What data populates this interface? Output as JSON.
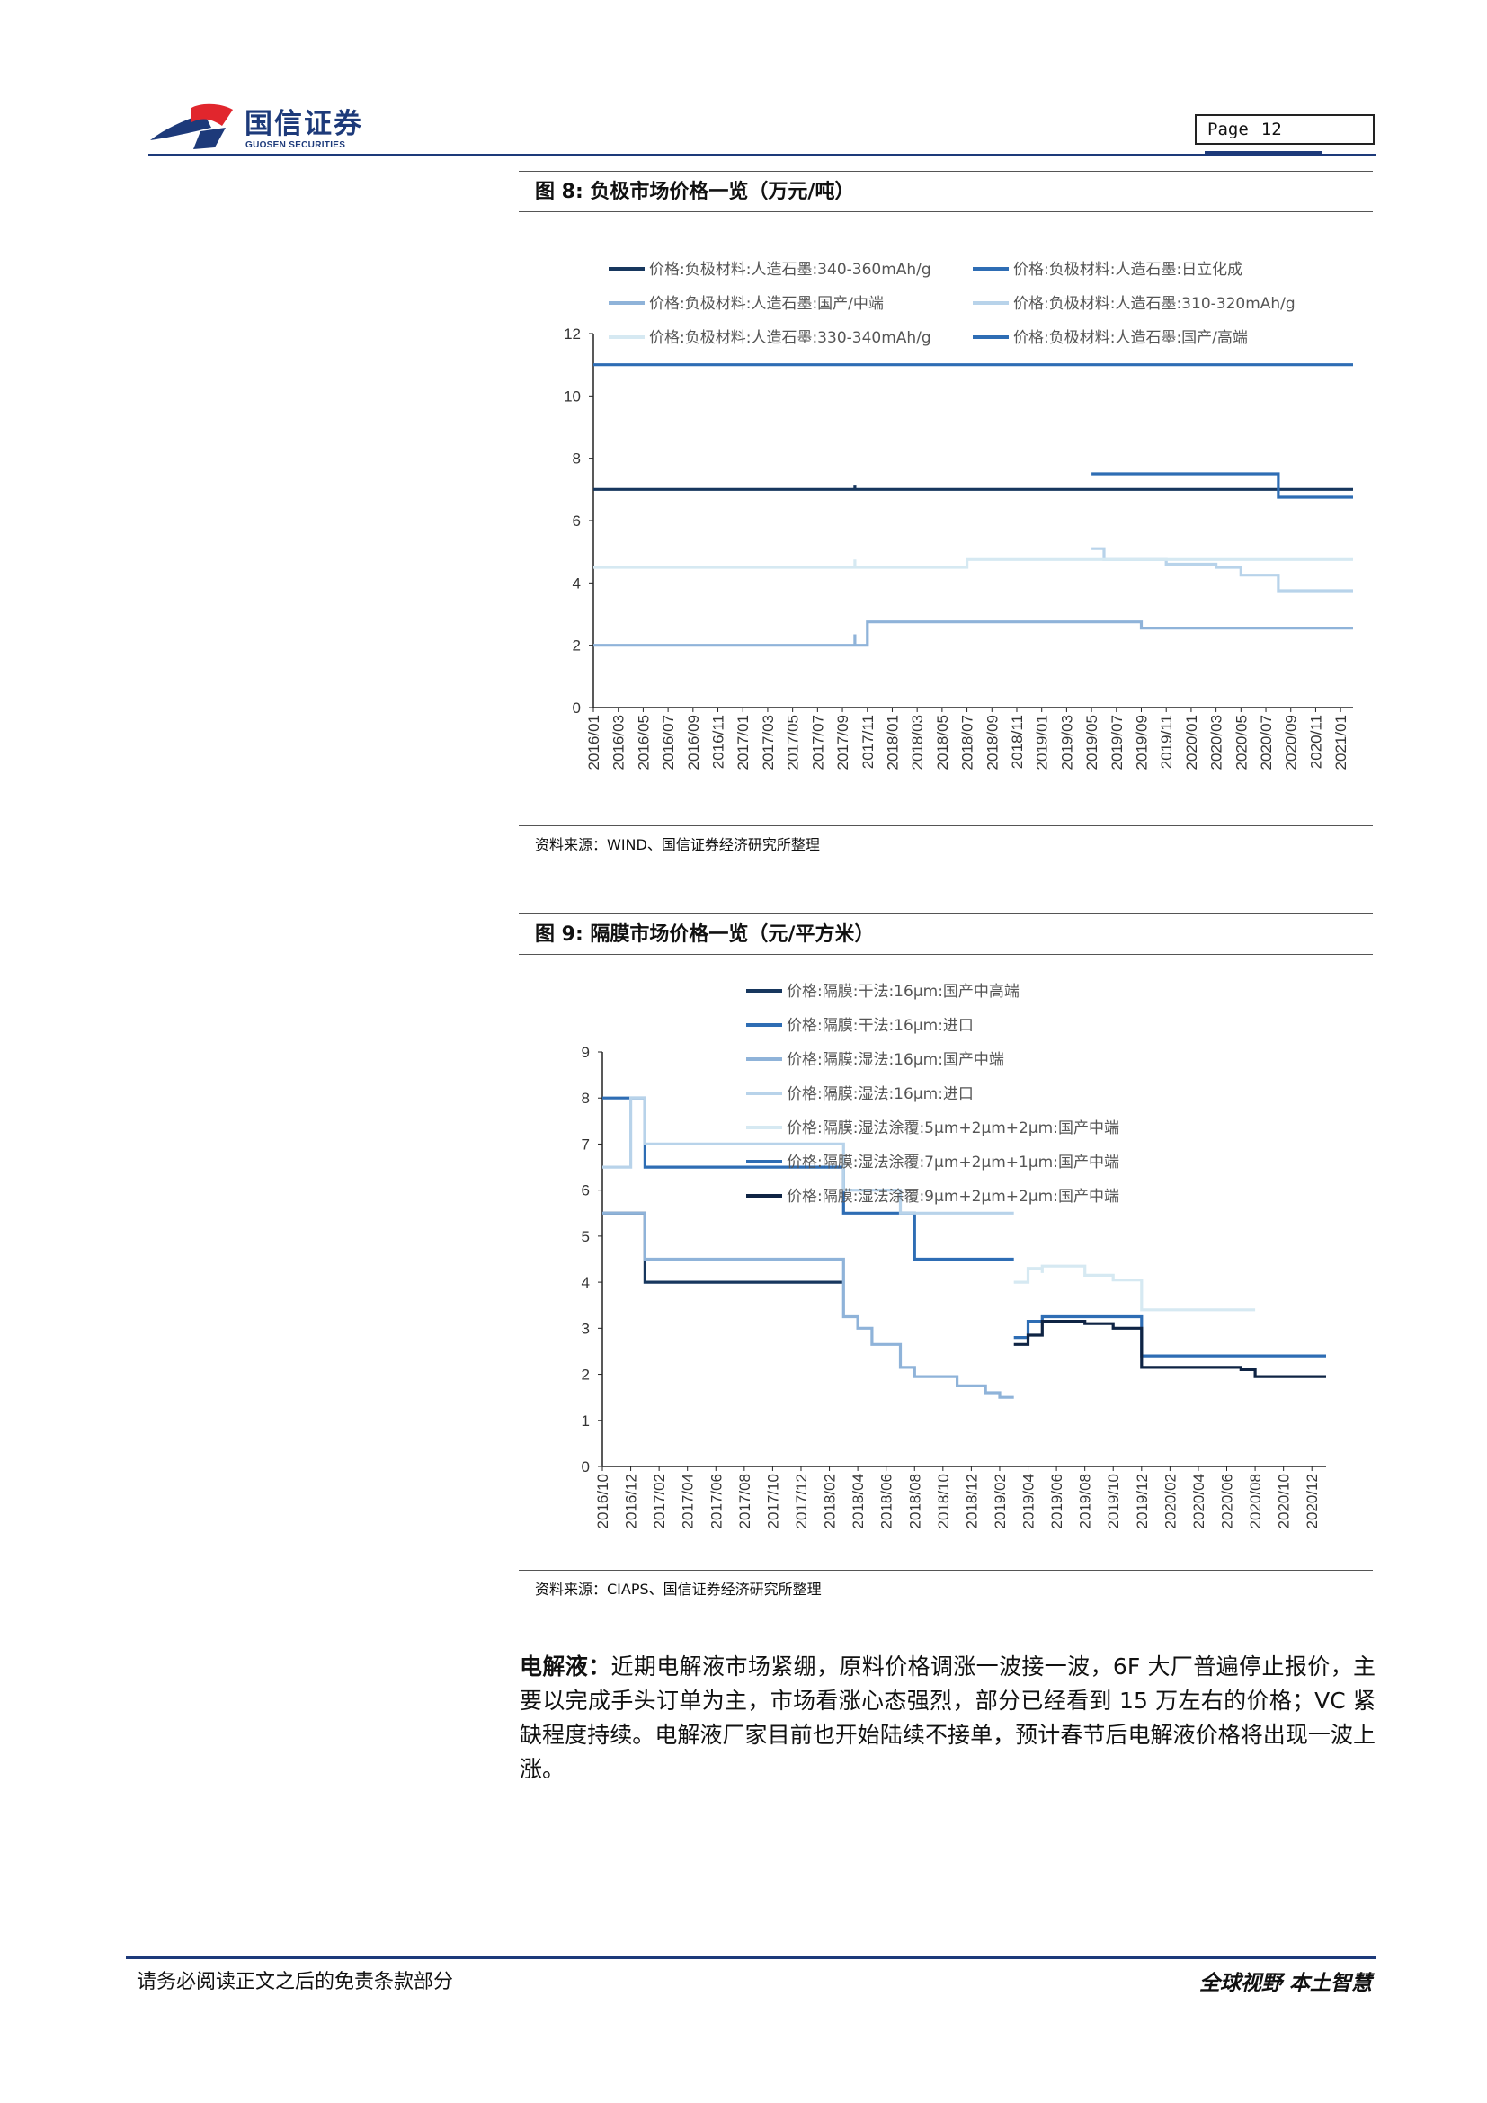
{
  "header": {
    "logo_cn": "国信证券",
    "logo_en": "GUOSEN SECURITIES",
    "page_label": "Page",
    "page_number": "12"
  },
  "figure8": {
    "title": "图 8:  负极市场价格一览（万元/吨）",
    "source": "资料来源：WIND、国信证券经济研究所整理"
  },
  "figure9": {
    "title": "图 9:  隔膜市场价格一览（元/平方米）",
    "source": "资料来源：CIAPS、国信证券经济研究所整理"
  },
  "paragraph": {
    "lead": "电解液：",
    "text": "近期电解液市场紧绷，原料价格调涨一波接一波，6F 大厂普遍停止报价，主要以完成手头订单为主，市场看涨心态强烈，部分已经看到 15 万左右的价格；VC 紧缺程度持续。电解液厂家目前也开始陆续不接单，预计春节后电解液价格将出现一波上涨。"
  },
  "footer": {
    "disclaimer": "请务必阅读正文之后的免责条款部分",
    "slogan": "全球视野   本土智慧"
  },
  "colors": {
    "navy": "#1d3a7a",
    "s_dark": "#17375e",
    "s_blue": "#2e6db4",
    "s_mid": "#8fb3d9",
    "s_light": "#b8d3ea",
    "s_pale": "#d6e9f2"
  },
  "chart_data": [
    {
      "type": "line",
      "step": true,
      "ylim": [
        0,
        12
      ],
      "yticks": [
        0,
        2,
        4,
        6,
        8,
        10,
        12
      ],
      "xlim": [
        "2016/01",
        "2021/02"
      ],
      "xticks": [
        "2016/01",
        "2016/03",
        "2016/05",
        "2016/07",
        "2016/09",
        "2016/11",
        "2017/01",
        "2017/03",
        "2017/05",
        "2017/07",
        "2017/09",
        "2017/11",
        "2018/01",
        "2018/03",
        "2018/05",
        "2018/07",
        "2018/09",
        "2018/11",
        "2019/01",
        "2019/03",
        "2019/05",
        "2019/07",
        "2019/09",
        "2019/11",
        "2020/01",
        "2020/03",
        "2020/05",
        "2020/07",
        "2020/09",
        "2020/11",
        "2021/01"
      ],
      "legend_position": "top",
      "series": [
        {
          "name": "价格:负极材料:人造石墨:340-360mAh/g",
          "color": "#17375e",
          "points": [
            [
              "2016/01",
              7.0
            ],
            [
              "2017/10",
              7.0
            ],
            [
              "2017/10",
              7.15
            ],
            [
              "2017/10",
              7.0
            ],
            [
              "2021/02",
              7.0
            ]
          ]
        },
        {
          "name": "价格:负极材料:人造石墨:日立化成",
          "color": "#2e6db4",
          "points": [
            [
              "2016/01",
              11.0
            ],
            [
              "2021/02",
              11.0
            ]
          ]
        },
        {
          "name": "价格:负极材料:人造石墨:国产/中端",
          "color": "#8fb3d9",
          "points": [
            [
              "2016/01",
              2.0
            ],
            [
              "2017/10",
              2.0
            ],
            [
              "2017/10",
              2.35
            ],
            [
              "2017/10",
              2.0
            ],
            [
              "2017/11",
              2.0
            ],
            [
              "2017/11",
              2.75
            ],
            [
              "2019/09",
              2.75
            ],
            [
              "2019/09",
              2.55
            ],
            [
              "2021/02",
              2.55
            ]
          ]
        },
        {
          "name": "价格:负极材料:人造石墨:310-320mAh/g",
          "color": "#b8d3ea",
          "points": [
            [
              "2019/05",
              5.1
            ],
            [
              "2019/06",
              5.1
            ],
            [
              "2019/06",
              4.75
            ],
            [
              "2019/11",
              4.75
            ],
            [
              "2019/11",
              4.6
            ],
            [
              "2020/03",
              4.6
            ],
            [
              "2020/03",
              4.5
            ],
            [
              "2020/05",
              4.5
            ],
            [
              "2020/05",
              4.25
            ],
            [
              "2020/08",
              4.25
            ],
            [
              "2020/08",
              3.75
            ],
            [
              "2021/02",
              3.75
            ]
          ]
        },
        {
          "name": "价格:负极材料:人造石墨:330-340mAh/g",
          "color": "#d6e9f2",
          "points": [
            [
              "2016/01",
              4.5
            ],
            [
              "2017/10",
              4.5
            ],
            [
              "2017/10",
              4.75
            ],
            [
              "2017/10",
              4.5
            ],
            [
              "2018/07",
              4.5
            ],
            [
              "2018/07",
              4.75
            ],
            [
              "2021/02",
              4.75
            ]
          ]
        },
        {
          "name": "价格:负极材料:人造石墨:国产/高端",
          "color": "#2e6db4",
          "points": [
            [
              "2019/05",
              7.5
            ],
            [
              "2020/08",
              7.5
            ],
            [
              "2020/08",
              6.75
            ],
            [
              "2021/02",
              6.75
            ]
          ]
        }
      ]
    },
    {
      "type": "line",
      "step": true,
      "ylim": [
        0,
        9
      ],
      "yticks": [
        0,
        1,
        2,
        3,
        4,
        5,
        6,
        7,
        8,
        9
      ],
      "xlim": [
        "2016/10",
        "2021/01"
      ],
      "xticks": [
        "2016/10",
        "2016/12",
        "2017/02",
        "2017/04",
        "2017/06",
        "2017/08",
        "2017/10",
        "2017/12",
        "2018/02",
        "2018/04",
        "2018/06",
        "2018/08",
        "2018/10",
        "2018/12",
        "2019/02",
        "2019/04",
        "2019/06",
        "2019/08",
        "2019/10",
        "2019/12",
        "2020/02",
        "2020/04",
        "2020/06",
        "2020/08",
        "2020/10",
        "2020/12"
      ],
      "legend_position": "top",
      "series": [
        {
          "name": "价格:隔膜:干法:16μm:国产中高端",
          "color": "#17375e",
          "points": [
            [
              "2016/10",
              5.5
            ],
            [
              "2017/01",
              5.5
            ],
            [
              "2017/01",
              4.0
            ],
            [
              "2018/03",
              4.0
            ]
          ]
        },
        {
          "name": "价格:隔膜:干法:16μm:进口",
          "color": "#2e6db4",
          "points": [
            [
              "2016/10",
              8.0
            ],
            [
              "2017/01",
              8.0
            ],
            [
              "2017/01",
              6.5
            ],
            [
              "2018/03",
              6.5
            ],
            [
              "2018/03",
              5.5
            ],
            [
              "2018/08",
              5.5
            ],
            [
              "2018/08",
              4.5
            ],
            [
              "2019/03",
              4.5
            ]
          ]
        },
        {
          "name": "价格:隔膜:湿法:16μm:国产中端",
          "color": "#8fb3d9",
          "points": [
            [
              "2016/10",
              5.5
            ],
            [
              "2017/01",
              5.5
            ],
            [
              "2017/01",
              4.5
            ],
            [
              "2018/03",
              4.5
            ],
            [
              "2018/03",
              3.25
            ],
            [
              "2018/04",
              3.25
            ],
            [
              "2018/04",
              3.0
            ],
            [
              "2018/05",
              3.0
            ],
            [
              "2018/05",
              2.65
            ],
            [
              "2018/07",
              2.65
            ],
            [
              "2018/07",
              2.15
            ],
            [
              "2018/08",
              2.15
            ],
            [
              "2018/08",
              1.95
            ],
            [
              "2018/11",
              1.95
            ],
            [
              "2018/11",
              1.75
            ],
            [
              "2019/01",
              1.75
            ],
            [
              "2019/01",
              1.6
            ],
            [
              "2019/02",
              1.6
            ],
            [
              "2019/02",
              1.5
            ],
            [
              "2019/03",
              1.5
            ]
          ]
        },
        {
          "name": "价格:隔膜:湿法:16μm:进口",
          "color": "#b8d3ea",
          "points": [
            [
              "2016/10",
              6.5
            ],
            [
              "2016/12",
              6.5
            ],
            [
              "2016/12",
              8.0
            ],
            [
              "2017/01",
              8.0
            ],
            [
              "2017/01",
              7.0
            ],
            [
              "2018/03",
              7.0
            ],
            [
              "2018/03",
              6.0
            ],
            [
              "2018/07",
              6.0
            ],
            [
              "2018/07",
              5.5
            ],
            [
              "2019/03",
              5.5
            ]
          ]
        },
        {
          "name": "价格:隔膜:湿法涂覆:5μm+2μm+2μm:国产中端",
          "color": "#d6e9f2",
          "points": [
            [
              "2019/03",
              4.0
            ],
            [
              "2019/04",
              4.0
            ],
            [
              "2019/04",
              4.3
            ],
            [
              "2019/05",
              4.3
            ],
            [
              "2019/05",
              4.2
            ],
            [
              "2019/05",
              4.35
            ],
            [
              "2019/08",
              4.35
            ],
            [
              "2019/08",
              4.15
            ],
            [
              "2019/10",
              4.15
            ],
            [
              "2019/10",
              4.05
            ],
            [
              "2019/12",
              4.05
            ],
            [
              "2019/12",
              3.4
            ],
            [
              "2020/08",
              3.4
            ]
          ]
        },
        {
          "name": "价格:隔膜:湿法涂覆:7μm+2μm+1μm:国产中端",
          "color": "#2e6db4",
          "points": [
            [
              "2019/03",
              2.8
            ],
            [
              "2019/04",
              2.8
            ],
            [
              "2019/04",
              3.15
            ],
            [
              "2019/05",
              3.15
            ],
            [
              "2019/05",
              3.25
            ],
            [
              "2019/12",
              3.25
            ],
            [
              "2019/12",
              2.4
            ],
            [
              "2021/01",
              2.4
            ]
          ]
        },
        {
          "name": "价格:隔膜:湿法涂覆:9μm+2μm+2μm:国产中端",
          "color": "#0f2444",
          "points": [
            [
              "2019/03",
              2.65
            ],
            [
              "2019/04",
              2.65
            ],
            [
              "2019/04",
              2.85
            ],
            [
              "2019/05",
              2.85
            ],
            [
              "2019/05",
              3.15
            ],
            [
              "2019/08",
              3.15
            ],
            [
              "2019/08",
              3.1
            ],
            [
              "2019/10",
              3.1
            ],
            [
              "2019/10",
              3.0
            ],
            [
              "2019/12",
              3.0
            ],
            [
              "2019/12",
              2.15
            ],
            [
              "2020/07",
              2.15
            ],
            [
              "2020/07",
              2.1
            ],
            [
              "2020/08",
              2.1
            ],
            [
              "2020/08",
              1.95
            ],
            [
              "2021/01",
              1.95
            ]
          ]
        }
      ]
    }
  ]
}
